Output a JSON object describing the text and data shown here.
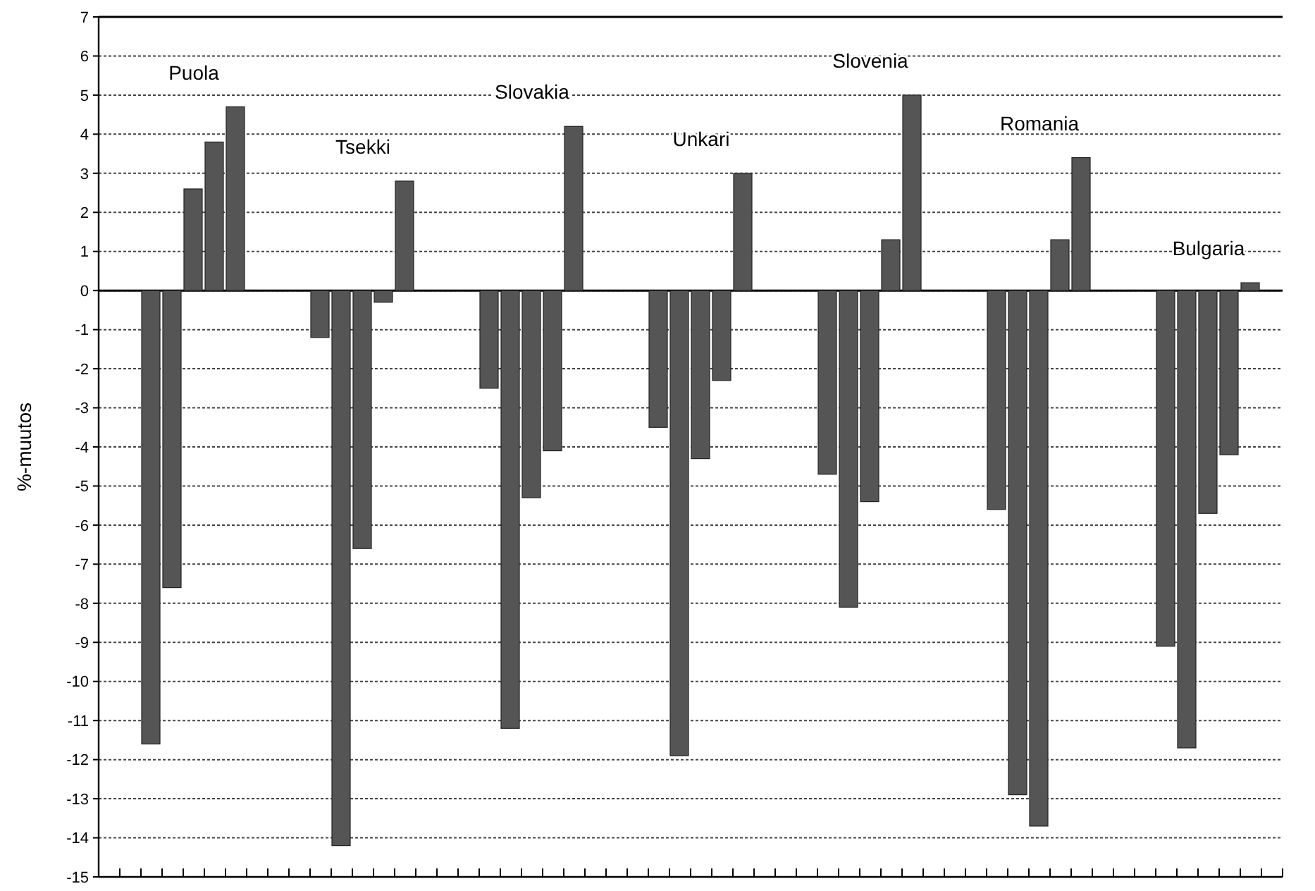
{
  "chart_data": {
    "type": "bar",
    "ylabel": "%-muutos",
    "categories": [
      "Puola",
      "Tsekki",
      "Slovakia",
      "Unkari",
      "Slovenia",
      "Romania",
      "Bulgaria"
    ],
    "series": [
      {
        "color": "#555555",
        "values": [
          -11.6,
          -1.2,
          -2.5,
          -3.5,
          -4.7,
          -5.6,
          -9.1
        ]
      },
      {
        "color": "#555555",
        "values": [
          -7.6,
          -14.2,
          -11.2,
          -11.9,
          -8.1,
          -12.9,
          -11.7
        ]
      },
      {
        "color": "#555555",
        "values": [
          2.6,
          -6.6,
          -5.3,
          -4.3,
          -5.4,
          -13.7,
          -5.7
        ]
      },
      {
        "color": "#555555",
        "values": [
          3.8,
          -0.3,
          -4.1,
          -2.3,
          1.3,
          1.3,
          -4.2
        ]
      },
      {
        "color": "#555555",
        "values": [
          4.7,
          2.8,
          4.2,
          3.0,
          5.0,
          3.4,
          0.2
        ]
      }
    ],
    "ylim": [
      -15,
      7
    ],
    "yticks": [
      -15,
      -14,
      -13,
      -12,
      -11,
      -10,
      -9,
      -8,
      -7,
      -6,
      -5,
      -4,
      -3,
      -2,
      -1,
      0,
      1,
      2,
      3,
      4,
      5,
      6,
      7
    ],
    "grid": "y",
    "tick_labels": "y"
  }
}
